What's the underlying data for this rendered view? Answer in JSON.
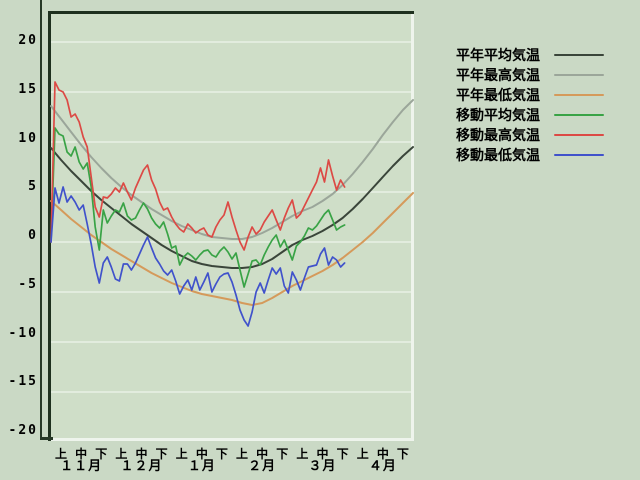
{
  "window": {
    "background": "#cad9c5",
    "frame_line_color": "#263826"
  },
  "chart_data": {
    "type": "line",
    "title": "",
    "grid": true,
    "legend_position": "right",
    "plot": {
      "bg": "#cfdec8",
      "grid_color": "#eef4ea",
      "border_dark": "#1e301e",
      "border_light": "#eef4ec"
    },
    "y_axis": {
      "min": -20,
      "max": 20,
      "step": 5,
      "tick_labels": [
        "20",
        "15",
        "10",
        "5",
        "0",
        "-5",
        "-10",
        "-15",
        "-20"
      ]
    },
    "x_axis": {
      "period_labels": [
        "上",
        "中",
        "下"
      ],
      "months": [
        "１１月",
        "１２月",
        "１月",
        "２月",
        "３月",
        "４月"
      ],
      "periods_per_month": 3,
      "days_total": 180
    },
    "series": [
      {
        "name": "平年平均気温",
        "color": "#3a453a",
        "width": 2,
        "start_day": 0,
        "step_days": 5,
        "values": [
          9.4,
          8.2,
          7.1,
          6.1,
          5.1,
          4.2,
          3.4,
          2.6,
          1.8,
          1.1,
          0.4,
          -0.3,
          -0.9,
          -1.4,
          -1.9,
          -2.2,
          -2.4,
          -2.5,
          -2.6,
          -2.6,
          -2.5,
          -2.2,
          -1.7,
          -1.0,
          -0.3,
          0.2,
          0.6,
          1.1,
          1.7,
          2.4,
          3.3,
          4.3,
          5.4,
          6.5,
          7.6,
          8.6,
          9.5
        ]
      },
      {
        "name": "平年最高気温",
        "color": "#9ba69a",
        "width": 2,
        "start_day": 0,
        "step_days": 5,
        "values": [
          13.6,
          12.3,
          11.0,
          9.7,
          8.5,
          7.4,
          6.4,
          5.5,
          4.7,
          4.0,
          3.3,
          2.7,
          2.1,
          1.6,
          1.2,
          0.8,
          0.5,
          0.4,
          0.3,
          0.3,
          0.5,
          0.9,
          1.4,
          2.0,
          2.6,
          3.1,
          3.5,
          4.1,
          4.8,
          5.7,
          6.8,
          8.0,
          9.3,
          10.7,
          12.0,
          13.2,
          14.2
        ]
      },
      {
        "name": "平年最低気温",
        "color": "#d59a5b",
        "width": 2,
        "start_day": 0,
        "step_days": 5,
        "values": [
          4.1,
          3.2,
          2.3,
          1.5,
          0.7,
          0.0,
          -0.7,
          -1.3,
          -1.9,
          -2.5,
          -3.1,
          -3.6,
          -4.1,
          -4.5,
          -4.9,
          -5.2,
          -5.4,
          -5.6,
          -5.8,
          -6.1,
          -6.3,
          -6.1,
          -5.6,
          -5.0,
          -4.4,
          -3.9,
          -3.4,
          -2.9,
          -2.3,
          -1.6,
          -0.8,
          0.0,
          0.9,
          1.9,
          2.9,
          3.9,
          4.9
        ]
      },
      {
        "name": "移動平均気温",
        "color": "#39a346",
        "width": 1.7,
        "start_day": 0,
        "step_days": 2,
        "values": [
          0,
          11.4,
          10.8,
          10.6,
          9.0,
          8.6,
          9.5,
          8.0,
          7.3,
          7.9,
          5.5,
          1.5,
          -0.8,
          3.2,
          1.9,
          2.6,
          3.2,
          3.0,
          3.9,
          2.6,
          2.2,
          2.4,
          3.2,
          3.9,
          3.3,
          2.4,
          1.8,
          1.4,
          2.0,
          0.8,
          -0.6,
          -0.4,
          -2.3,
          -1.5,
          -1.1,
          -1.4,
          -1.8,
          -1.3,
          -0.9,
          -0.8,
          -1.3,
          -1.5,
          -0.9,
          -0.5,
          -1.0,
          -1.7,
          -1.1,
          -2.8,
          -4.5,
          -3.2,
          -1.9,
          -1.8,
          -2.3,
          -1.3,
          -0.5,
          0.2,
          0.7,
          -0.5,
          0.2,
          -0.8,
          -1.8,
          -0.4,
          0.0,
          0.6,
          1.4,
          1.2,
          1.6,
          2.2,
          2.8,
          3.2,
          2.2,
          1.2,
          1.5,
          1.7
        ]
      },
      {
        "name": "移動最高気温",
        "color": "#dc4a45",
        "width": 1.7,
        "start_day": 0,
        "step_days": 2,
        "values": [
          0,
          16.0,
          15.2,
          15.0,
          14.2,
          12.5,
          12.8,
          12.0,
          10.5,
          9.5,
          6.5,
          3.5,
          2.5,
          4.5,
          4.4,
          4.8,
          5.4,
          5.0,
          5.9,
          5.0,
          4.2,
          5.4,
          6.3,
          7.2,
          7.7,
          6.2,
          5.3,
          4.0,
          3.2,
          3.4,
          2.5,
          1.8,
          1.3,
          1.0,
          1.8,
          1.4,
          0.9,
          1.2,
          1.4,
          0.7,
          0.5,
          1.5,
          2.2,
          2.7,
          4.0,
          2.5,
          1.2,
          0.0,
          -0.8,
          0.5,
          1.5,
          0.8,
          1.2,
          2.0,
          2.6,
          3.2,
          2.2,
          1.2,
          2.4,
          3.4,
          4.2,
          2.4,
          2.8,
          3.6,
          4.4,
          5.2,
          6.0,
          7.4,
          6.0,
          8.2,
          6.6,
          5.2,
          6.2,
          5.5
        ]
      },
      {
        "name": "移動最低気温",
        "color": "#4052cb",
        "width": 1.7,
        "start_day": 0,
        "step_days": 2,
        "values": [
          0,
          5.4,
          3.9,
          5.5,
          4.0,
          4.6,
          4.0,
          3.2,
          3.7,
          1.8,
          -0.2,
          -2.5,
          -4.1,
          -2.1,
          -1.5,
          -2.5,
          -3.7,
          -3.9,
          -2.2,
          -2.2,
          -2.8,
          -2.1,
          -1.2,
          -0.3,
          0.5,
          -0.6,
          -1.6,
          -2.2,
          -2.9,
          -3.3,
          -2.8,
          -3.9,
          -5.2,
          -4.4,
          -3.8,
          -4.8,
          -3.5,
          -4.8,
          -4.0,
          -3.1,
          -5.0,
          -4.2,
          -3.5,
          -3.2,
          -3.1,
          -4.0,
          -5.3,
          -6.8,
          -7.8,
          -8.4,
          -7.0,
          -5.0,
          -4.1,
          -5.1,
          -3.8,
          -2.6,
          -3.2,
          -2.6,
          -4.4,
          -5.1,
          -3.0,
          -3.8,
          -4.8,
          -3.6,
          -2.5,
          -2.4,
          -2.3,
          -1.2,
          -0.6,
          -2.3,
          -1.5,
          -1.8,
          -2.5,
          -2.1
        ]
      }
    ]
  },
  "legend": {
    "items": [
      "平年平均気温",
      "平年最高気温",
      "平年最低気温",
      "移動平均気温",
      "移動最高気温",
      "移動最低気温"
    ]
  }
}
